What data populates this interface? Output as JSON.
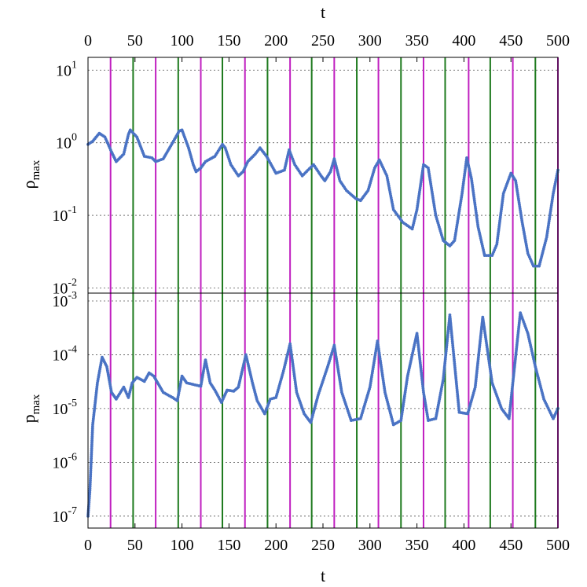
{
  "colors": {
    "series": "#4a73c4",
    "vline_a": "#c01fc0",
    "vline_b": "#1e7a1e",
    "grid": "#555555"
  },
  "axes": {
    "top_xlabel": "t",
    "bottom_xlabel": "t",
    "xticks": [
      "0",
      "50",
      "100",
      "150",
      "200",
      "250",
      "300",
      "350",
      "400",
      "450",
      "500"
    ],
    "top_ylabel": "ρ",
    "top_ylabel_sub": "max",
    "bottom_ylabel": "p",
    "bottom_ylabel_sub": "max",
    "top_ytick_exponents": [
      "1",
      "0",
      "-1",
      "-2"
    ],
    "bottom_ytick_exponents": [
      "-3",
      "-4",
      "-5",
      "-6",
      "-7"
    ],
    "ytick_base": "10"
  },
  "chart_data": [
    {
      "type": "scatter",
      "title": "",
      "xlabel": "t",
      "ylabel": "ρmax",
      "xlim": [
        0,
        500
      ],
      "ylim": [
        0.0085,
        15
      ],
      "yscale": "log",
      "grid": true,
      "vlines_magenta": [
        24,
        72,
        120,
        167,
        215,
        262,
        309,
        357,
        405,
        452,
        500
      ],
      "vlines_green": [
        48,
        96,
        143,
        191,
        238,
        286,
        333,
        380,
        428,
        476
      ],
      "series": [
        {
          "x": [
            0,
            5,
            12,
            18,
            25,
            30,
            38,
            43,
            45,
            52,
            60,
            68,
            72,
            80,
            90,
            97,
            100,
            107,
            112,
            115,
            120,
            125,
            135,
            143,
            146,
            152,
            160,
            165,
            170,
            178,
            183,
            190,
            200,
            209,
            214,
            220,
            228,
            234,
            240,
            248,
            252,
            258,
            262,
            268,
            275,
            285,
            290,
            298,
            305,
            310,
            318,
            325,
            335,
            345,
            350,
            357,
            362,
            370,
            378,
            385,
            390,
            398,
            403,
            408,
            415,
            422,
            430,
            435,
            442,
            450,
            455,
            462,
            468,
            474,
            480,
            488,
            495,
            500
          ],
          "y": [
            0.95,
            1.05,
            1.35,
            1.2,
            0.75,
            0.55,
            0.7,
            1.3,
            1.5,
            1.2,
            0.65,
            0.62,
            0.55,
            0.6,
            1.0,
            1.45,
            1.5,
            0.85,
            0.5,
            0.4,
            0.45,
            0.55,
            0.65,
            0.95,
            0.85,
            0.5,
            0.35,
            0.4,
            0.55,
            0.7,
            0.85,
            0.65,
            0.38,
            0.42,
            0.8,
            0.5,
            0.35,
            0.42,
            0.5,
            0.35,
            0.3,
            0.4,
            0.6,
            0.3,
            0.22,
            0.17,
            0.16,
            0.22,
            0.45,
            0.58,
            0.35,
            0.12,
            0.08,
            0.065,
            0.12,
            0.5,
            0.45,
            0.1,
            0.045,
            0.038,
            0.045,
            0.2,
            0.62,
            0.32,
            0.07,
            0.028,
            0.028,
            0.04,
            0.2,
            0.38,
            0.3,
            0.08,
            0.03,
            0.02,
            0.02,
            0.05,
            0.2,
            0.42
          ]
        }
      ]
    },
    {
      "type": "scatter",
      "title": "",
      "xlabel": "t",
      "ylabel": "pmax",
      "xlim": [
        0,
        500
      ],
      "ylim": [
        6e-08,
        0.0014
      ],
      "yscale": "log",
      "grid": true,
      "vlines_magenta": [
        24,
        72,
        120,
        167,
        215,
        262,
        309,
        357,
        405,
        452,
        500
      ],
      "vlines_green": [
        48,
        96,
        143,
        191,
        238,
        286,
        333,
        380,
        428,
        476
      ],
      "series": [
        {
          "x": [
            0,
            2,
            5,
            10,
            15,
            20,
            25,
            30,
            38,
            43,
            47,
            52,
            60,
            65,
            70,
            80,
            90,
            95,
            100,
            105,
            112,
            120,
            125,
            130,
            135,
            142,
            148,
            155,
            160,
            168,
            175,
            180,
            188,
            194,
            200,
            208,
            215,
            222,
            230,
            237,
            245,
            255,
            262,
            270,
            280,
            290,
            300,
            308,
            316,
            325,
            333,
            340,
            350,
            357,
            362,
            370,
            378,
            385,
            395,
            404,
            412,
            420,
            430,
            440,
            448,
            452,
            460,
            468,
            476,
            485,
            495,
            500
          ],
          "y": [
            1e-07,
            3e-07,
            5e-06,
            3e-05,
            9e-05,
            6e-05,
            2e-05,
            1.5e-05,
            2.5e-05,
            1.6e-05,
            3e-05,
            3.8e-05,
            3.2e-05,
            4.6e-05,
            4e-05,
            2e-05,
            1.6e-05,
            1.4e-05,
            4e-05,
            3e-05,
            2.8e-05,
            2.6e-05,
            8e-05,
            3e-05,
            2.2e-05,
            1.3e-05,
            2.2e-05,
            2.1e-05,
            2.5e-05,
            0.0001,
            3e-05,
            1.4e-05,
            8e-06,
            1.5e-05,
            1.6e-05,
            5e-05,
            0.00016,
            2e-05,
            8e-06,
            5.5e-06,
            1.8e-05,
            6e-05,
            0.00015,
            2e-05,
            6e-06,
            6.5e-06,
            2.5e-05,
            0.00018,
            2e-05,
            5e-06,
            6e-06,
            4e-05,
            0.00025,
            2e-05,
            6e-06,
            6.5e-06,
            3.5e-05,
            0.00055,
            8.5e-06,
            8e-06,
            2.5e-05,
            0.0005,
            3e-05,
            1e-05,
            6.5e-06,
            3e-05,
            0.0006,
            0.00025,
            6e-05,
            1.5e-05,
            6.5e-06,
            1e-05
          ]
        }
      ]
    }
  ]
}
